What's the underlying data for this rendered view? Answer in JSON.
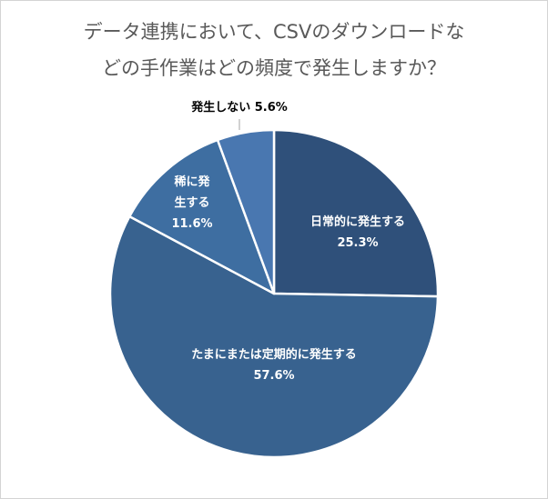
{
  "chart_data": {
    "type": "pie",
    "title_lines": [
      "データ連携において、CSVのダウンロードな",
      "どの手作業はどの頻度で発生しますか？"
    ],
    "slices": [
      {
        "label_lines": [
          "日常的に発生する"
        ],
        "value": 25.3,
        "value_label": "25.3%",
        "color": "#2f507a",
        "label_color": "#ffffff"
      },
      {
        "label_lines": [
          "たまにまたは定期的に発生する"
        ],
        "value": 57.6,
        "value_label": "57.6%",
        "color": "#38628f",
        "label_color": "#ffffff"
      },
      {
        "label_lines": [
          "稀に発",
          "生する"
        ],
        "value": 11.6,
        "value_label": "11.6%",
        "color": "#3e6ea1",
        "label_color": "#ffffff"
      },
      {
        "label_lines": [
          "発生しない"
        ],
        "value": 5.6,
        "value_label": "5.6%",
        "color": "#4977b0",
        "label_color": "#000000",
        "outside": true
      }
    ],
    "start_angle_deg": 0,
    "direction": "clockwise",
    "legend": "none"
  }
}
